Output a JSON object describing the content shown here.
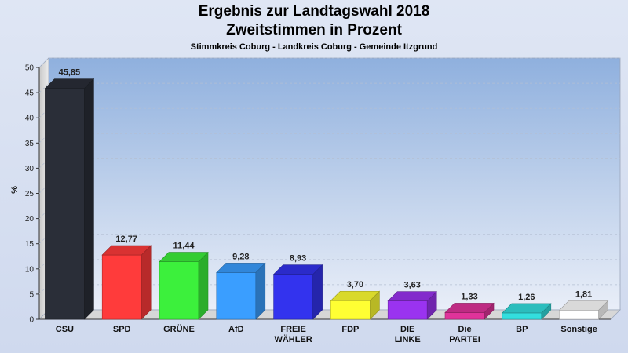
{
  "header": {
    "title": "Ergebnis zur Landtagswahl 2018",
    "subtitle": "Zweitstimmen in Prozent",
    "caption": "Stimmkreis Coburg - Landkreis Coburg - Gemeinde Itzgrund"
  },
  "chart_data": {
    "type": "bar",
    "title": "Ergebnis zur Landtagswahl 2018",
    "subtitle": "Zweitstimmen in Prozent",
    "xlabel": "",
    "ylabel": "%",
    "ylim": [
      0,
      50
    ],
    "yticks": [
      0,
      5,
      10,
      15,
      20,
      25,
      30,
      35,
      40,
      45,
      50
    ],
    "grid": true,
    "categories": [
      [
        "CSU"
      ],
      [
        "SPD"
      ],
      [
        "GRÜNE"
      ],
      [
        "AfD"
      ],
      [
        "FREIE",
        "WÄHLER"
      ],
      [
        "FDP"
      ],
      [
        "DIE",
        "LINKE"
      ],
      [
        "Die",
        "PARTEI"
      ],
      [
        "BP"
      ],
      [
        "Sonstige"
      ]
    ],
    "values": [
      45.85,
      12.77,
      11.44,
      9.28,
      8.93,
      3.7,
      3.63,
      1.33,
      1.26,
      1.81
    ],
    "value_labels": [
      "45,85",
      "12,77",
      "11,44",
      "9,28",
      "8,93",
      "3,70",
      "3,63",
      "1,33",
      "1,26",
      "1,81"
    ],
    "colors": [
      "#2a2e38",
      "#ff3b3b",
      "#3cf03c",
      "#3a9eff",
      "#3333ee",
      "#ffff33",
      "#9a33f0",
      "#e0339a",
      "#33dede",
      "#ffffff"
    ]
  }
}
